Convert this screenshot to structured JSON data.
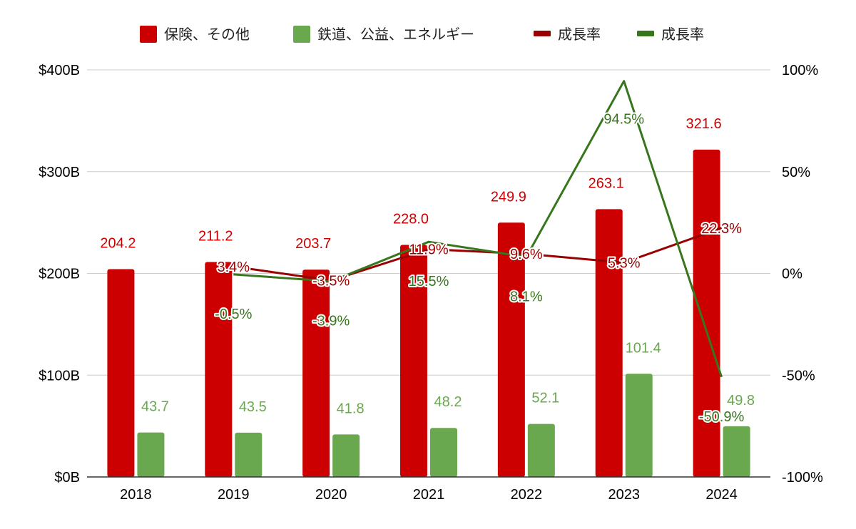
{
  "chart_data": {
    "type": "bar",
    "categories": [
      "2018",
      "2019",
      "2020",
      "2021",
      "2022",
      "2023",
      "2024"
    ],
    "y_left": {
      "ticks": [
        "$0B",
        "$100B",
        "$200B",
        "$300B",
        "$400B"
      ],
      "range": [
        0,
        400
      ]
    },
    "y_right": {
      "ticks": [
        "-100%",
        "-50%",
        "0%",
        "50%",
        "100%"
      ],
      "range": [
        -100,
        100
      ]
    },
    "grid": true,
    "legend_position": "top",
    "series": [
      {
        "name": "保険、その他",
        "kind": "bar",
        "axis": "left",
        "color": "#cc0000",
        "values": [
          204.2,
          211.2,
          203.7,
          228.0,
          249.9,
          263.1,
          321.6
        ],
        "labels": [
          "204.2",
          "211.2",
          "203.7",
          "228.0",
          "249.9",
          "263.1",
          "321.6"
        ]
      },
      {
        "name": "鉄道、公益、エネルギー",
        "kind": "bar",
        "axis": "left",
        "color": "#6aa84f",
        "values": [
          43.7,
          43.5,
          41.8,
          48.2,
          52.1,
          101.4,
          49.8
        ],
        "labels": [
          "43.7",
          "43.5",
          "41.8",
          "48.2",
          "52.1",
          "101.4",
          "49.8"
        ]
      },
      {
        "name": "成長率",
        "kind": "line",
        "axis": "right",
        "color": "#990000",
        "values": [
          null,
          3.4,
          -3.5,
          11.9,
          9.6,
          5.3,
          22.3
        ],
        "labels": [
          null,
          "3.4%",
          "-3.5%",
          "11.9%",
          "9.6%",
          "5.3%",
          "22.3%"
        ]
      },
      {
        "name": "成長率",
        "kind": "line",
        "axis": "right",
        "color": "#38761d",
        "values": [
          null,
          -0.5,
          -3.9,
          15.5,
          8.1,
          94.5,
          -50.9
        ],
        "labels": [
          null,
          "-0.5%",
          "-3.9%",
          "15.5%",
          "8.1%",
          "94.5%",
          "-50.9%"
        ]
      }
    ]
  }
}
